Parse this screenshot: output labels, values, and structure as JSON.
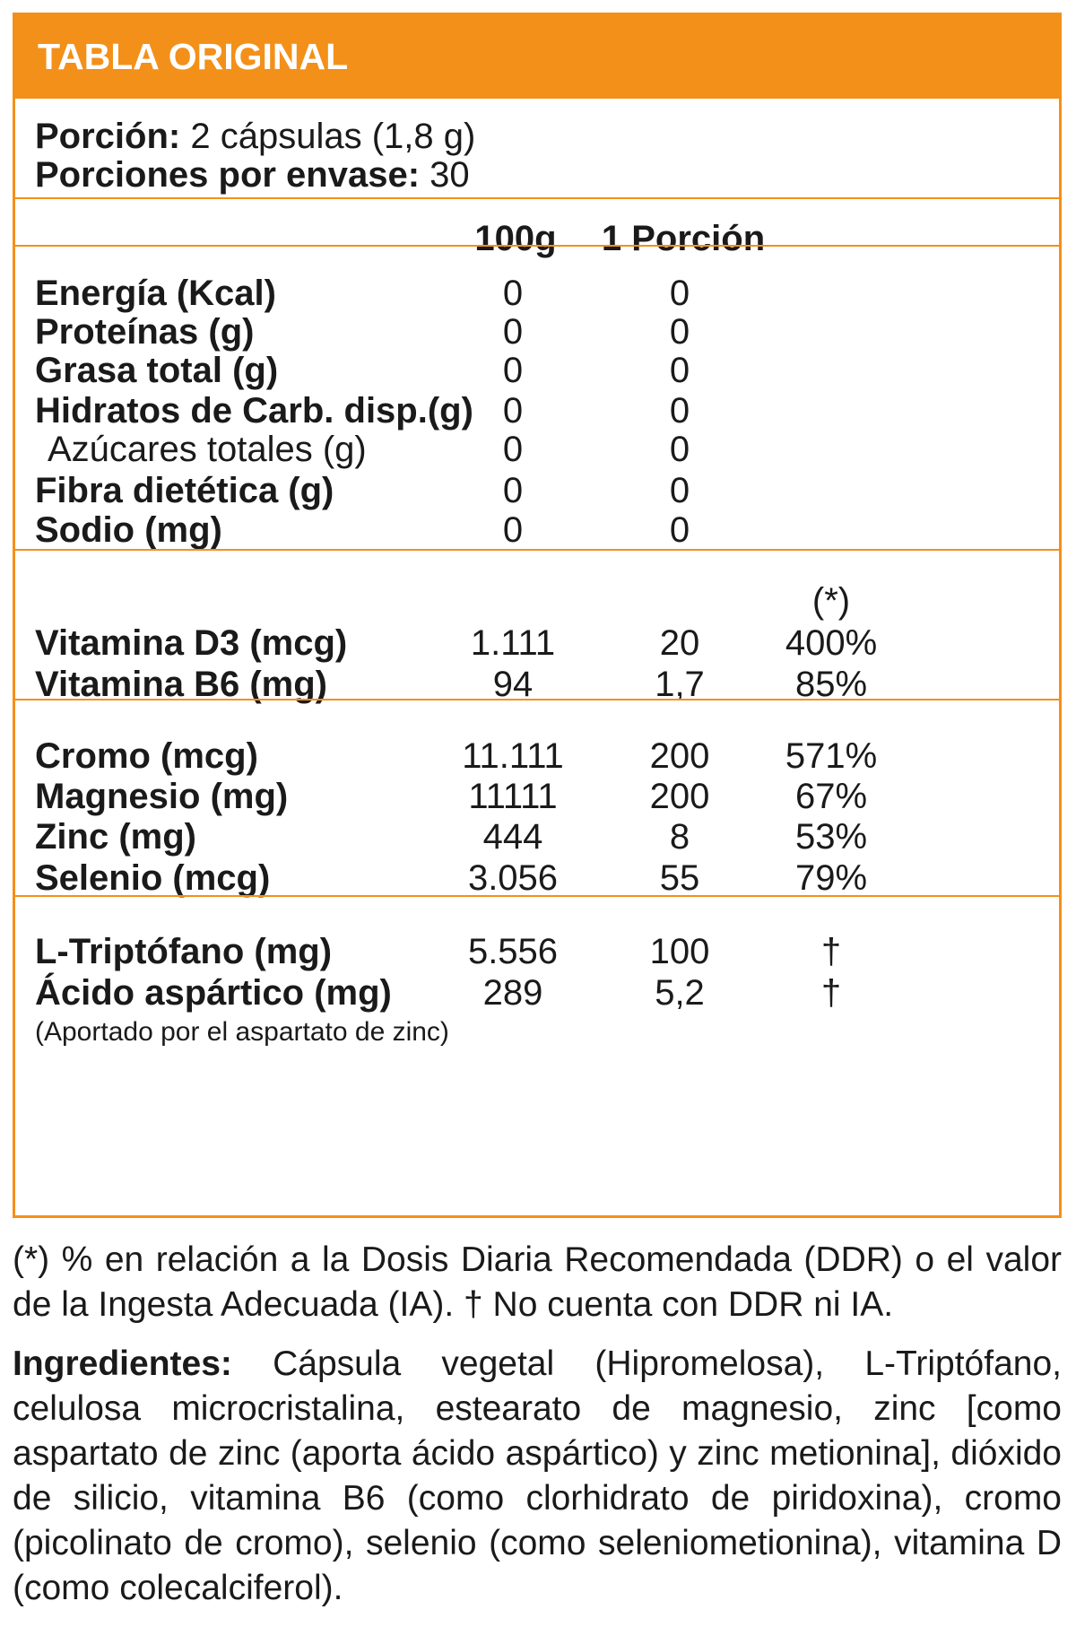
{
  "title": "TABLA ORIGINAL",
  "serving": {
    "porcion_label": "Porción:",
    "porcion_value": " 2 cápsulas (1,8 g)",
    "porciones_label": "Porciones por envase:",
    "porciones_value": " 30"
  },
  "columns": {
    "per100": "100g",
    "per_serving": "1 Porción",
    "pct_marker": "(*)"
  },
  "macros": [
    {
      "name": "Energía (Kcal)",
      "v100": "0",
      "vserv": "0"
    },
    {
      "name": "Proteínas (g)",
      "v100": "0",
      "vserv": "0"
    },
    {
      "name": "Grasa total (g)",
      "v100": "0",
      "vserv": "0"
    },
    {
      "name": "Hidratos de Carb. disp.(g)",
      "v100": "0",
      "vserv": "0"
    },
    {
      "name": "Azúcares totales (g)",
      "v100": "0",
      "vserv": "0"
    },
    {
      "name": "Fibra dietética (g)",
      "v100": "0",
      "vserv": "0"
    },
    {
      "name": "Sodio (mg)",
      "v100": "0",
      "vserv": "0"
    }
  ],
  "vitamins": [
    {
      "name": "Vitamina D3 (mcg)",
      "v100": "1.111",
      "vserv": "20",
      "pct": "400%"
    },
    {
      "name": "Vitamina B6 (mg)",
      "v100": "94",
      "vserv": "1,7",
      "pct": "85%"
    }
  ],
  "minerals": [
    {
      "name": "Cromo (mcg)",
      "v100": "11.111",
      "vserv": "200",
      "pct": "571%"
    },
    {
      "name": "Magnesio (mg)",
      "v100": "11111",
      "vserv": "200",
      "pct": "67%"
    },
    {
      "name": "Zinc (mg)",
      "v100": "444",
      "vserv": "8",
      "pct": "53%"
    },
    {
      "name": "Selenio (mcg)",
      "v100": "3.056",
      "vserv": "55",
      "pct": "79%"
    }
  ],
  "aminos": [
    {
      "name": "L-Triptófano (mg)",
      "v100": "5.556",
      "vserv": "100",
      "pct": "†"
    },
    {
      "name": "Ácido aspártico (mg)",
      "v100": "289",
      "vserv": "5,2",
      "pct": "†"
    }
  ],
  "amino_note": "(Aportado por el aspartato de zinc)",
  "footnote": "(*) % en relación a la Dosis Diaria Recomendada (DDR) o el valor de la Ingesta Adecuada (IA). † No cuenta con DDR ni IA.",
  "ingredients_label": "Ingredientes:",
  "ingredients_text": " Cápsula vegetal (Hipromelosa), L-Triptófano, celulosa microcristalina, estearato de magnesio, zinc [como aspartato de zinc (aporta ácido aspártico) y zinc metionina], dióxido de silicio, vitamina B6 (como clorhidrato de piridoxina), cromo (picolinato de cromo), selenio (como seleniometionina), vitamina D (como colecalciferol).",
  "colors": {
    "accent": "#f39019",
    "text": "#1a1a1a"
  }
}
